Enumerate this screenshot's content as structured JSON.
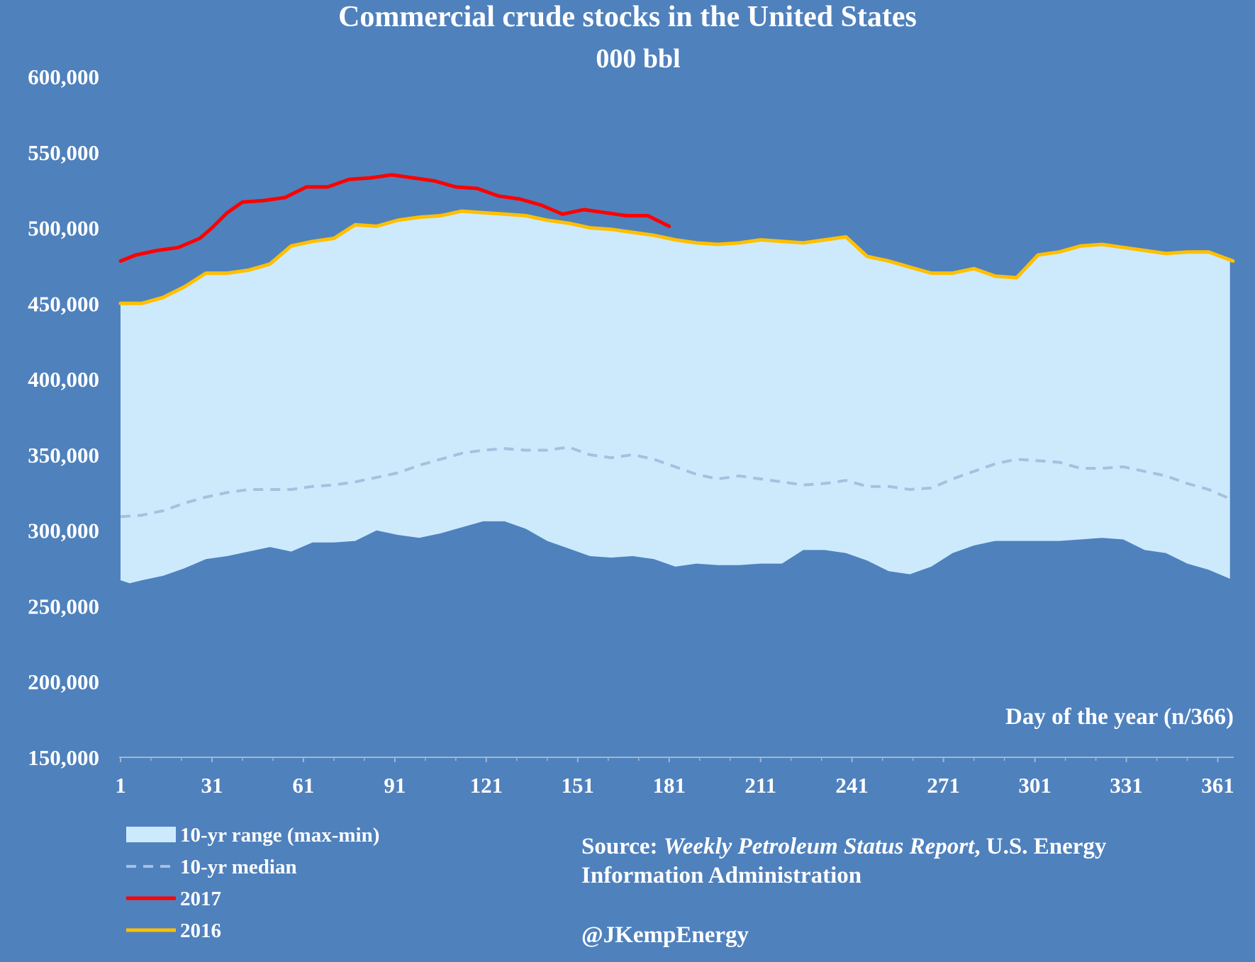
{
  "chart_data": {
    "type": "area",
    "title": "Commercial crude stocks in the United States",
    "subtitle": "000 bbl",
    "xlabel": "Day of the year (n/366)",
    "ylabel": "",
    "ylim": [
      150000,
      600000
    ],
    "xlim": [
      1,
      366
    ],
    "y_ticks": [
      "600,000",
      "550,000",
      "500,000",
      "450,000",
      "400,000",
      "350,000",
      "300,000",
      "250,000",
      "200,000",
      "150,000"
    ],
    "y_tick_values": [
      600000,
      550000,
      500000,
      450000,
      400000,
      350000,
      300000,
      250000,
      200000,
      150000
    ],
    "x_ticks": [
      "1",
      "31",
      "61",
      "91",
      "121",
      "151",
      "181",
      "211",
      "241",
      "271",
      "301",
      "331",
      "361"
    ],
    "x_tick_values": [
      1,
      31,
      61,
      91,
      121,
      151,
      181,
      211,
      241,
      271,
      301,
      331,
      361
    ],
    "grid": false,
    "legend_position": "bottom-left",
    "range_band": {
      "name": "10-yr range (max-min)",
      "color": "#cdeafd",
      "x": [
        1,
        4,
        8,
        15,
        22,
        29,
        36,
        43,
        50,
        57,
        64,
        71,
        78,
        85,
        92,
        99,
        106,
        113,
        120,
        127,
        134,
        141,
        148,
        155,
        162,
        169,
        176,
        183,
        190,
        197,
        204,
        211,
        218,
        225,
        232,
        239,
        246,
        253,
        260,
        267,
        274,
        281,
        288,
        295,
        302,
        309,
        316,
        323,
        330,
        337,
        344,
        351,
        358,
        365
      ],
      "max": [
        450000,
        450000,
        450000,
        454000,
        461000,
        470000,
        470000,
        472000,
        476000,
        488000,
        491000,
        493000,
        502000,
        501000,
        505000,
        507000,
        508000,
        511000,
        510000,
        509000,
        508000,
        505000,
        503000,
        500000,
        499000,
        497000,
        495000,
        492000,
        490000,
        489000,
        490000,
        492000,
        491000,
        490000,
        492000,
        494000,
        481000,
        478000,
        474000,
        470000,
        470000,
        473000,
        468000,
        467000,
        482000,
        484000,
        488000,
        489000,
        487000,
        485000,
        483000,
        484000,
        484000,
        478000
      ],
      "min": [
        267000,
        265000,
        267000,
        270000,
        275000,
        281000,
        283000,
        286000,
        289000,
        286000,
        292000,
        292000,
        293000,
        300000,
        297000,
        295000,
        298000,
        302000,
        306000,
        306000,
        301000,
        293000,
        288000,
        283000,
        282000,
        283000,
        281000,
        276000,
        278000,
        277000,
        277000,
        278000,
        278000,
        287000,
        287000,
        285000,
        280000,
        273000,
        271000,
        276000,
        285000,
        290000,
        293000,
        293000,
        293000,
        293000,
        294000,
        295000,
        294000,
        287000,
        285000,
        278000,
        274000,
        268000
      ]
    },
    "series": [
      {
        "name": "10-yr median",
        "color": "#a8bfdf",
        "dashed": true,
        "x": [
          1,
          8,
          15,
          22,
          29,
          36,
          43,
          50,
          57,
          64,
          71,
          78,
          85,
          92,
          99,
          106,
          113,
          120,
          127,
          134,
          141,
          148,
          155,
          162,
          169,
          176,
          183,
          190,
          197,
          204,
          211,
          218,
          225,
          232,
          239,
          246,
          253,
          260,
          267,
          274,
          281,
          288,
          295,
          302,
          309,
          316,
          323,
          330,
          337,
          344,
          351,
          358,
          366
        ],
        "values": [
          309000,
          310000,
          313000,
          318000,
          322000,
          325000,
          327000,
          327000,
          327000,
          329000,
          330000,
          332000,
          335000,
          338000,
          343000,
          347000,
          351000,
          353000,
          354000,
          353000,
          353000,
          355000,
          350000,
          348000,
          350000,
          347000,
          342000,
          337000,
          334000,
          336000,
          334000,
          332000,
          330000,
          331000,
          333000,
          329000,
          329000,
          327000,
          328000,
          334000,
          339000,
          344000,
          347000,
          346000,
          345000,
          341000,
          341000,
          342000,
          339000,
          336000,
          331000,
          327000,
          320000
        ]
      },
      {
        "name": "2017",
        "color": "#ff0000",
        "dashed": false,
        "x": [
          1,
          6,
          13,
          20,
          27,
          31,
          36,
          41,
          48,
          55,
          62,
          69,
          76,
          83,
          90,
          97,
          104,
          111,
          118,
          125,
          132,
          139,
          146,
          153,
          160,
          167,
          174,
          181
        ],
        "values": [
          478000,
          482000,
          485000,
          487000,
          493000,
          500000,
          510000,
          517000,
          518000,
          520000,
          527000,
          527000,
          532000,
          533000,
          535000,
          533000,
          531000,
          527000,
          526000,
          521000,
          519000,
          515000,
          509000,
          512000,
          510000,
          508000,
          508000,
          501000
        ]
      },
      {
        "name": "2016",
        "color": "#ffc000",
        "dashed": false,
        "x": [
          1,
          8,
          15,
          22,
          29,
          36,
          43,
          50,
          57,
          64,
          71,
          78,
          85,
          92,
          99,
          106,
          113,
          120,
          127,
          134,
          141,
          148,
          155,
          162,
          169,
          176,
          183,
          190,
          197,
          204,
          211,
          218,
          225,
          232,
          239,
          246,
          253,
          260,
          267,
          274,
          281,
          288,
          295,
          302,
          309,
          316,
          323,
          330,
          337,
          344,
          351,
          358,
          366
        ],
        "values": [
          450000,
          450000,
          454000,
          461000,
          470000,
          470000,
          472000,
          476000,
          488000,
          491000,
          493000,
          502000,
          501000,
          505000,
          507000,
          508000,
          511000,
          510000,
          509000,
          508000,
          505000,
          503000,
          500000,
          499000,
          497000,
          495000,
          492000,
          490000,
          489000,
          490000,
          492000,
          491000,
          490000,
          492000,
          494000,
          481000,
          478000,
          474000,
          470000,
          470000,
          473000,
          468000,
          467000,
          482000,
          484000,
          488000,
          489000,
          487000,
          485000,
          483000,
          484000,
          484000,
          478000
        ]
      }
    ],
    "legend": [
      {
        "label": "10-yr range (max-min)",
        "kind": "band",
        "color": "#cdeafd"
      },
      {
        "label": "10-yr median",
        "kind": "dashed",
        "color": "#a8bfdf"
      },
      {
        "label": "2017",
        "kind": "line",
        "color": "#ff0000"
      },
      {
        "label": "2016",
        "kind": "line",
        "color": "#ffc000"
      }
    ]
  },
  "source": {
    "prefix": "Source: ",
    "report": "Weekly Petroleum Status Report",
    "suffix": ", U.S. Energy",
    "line2": "Information Administration",
    "handle": "@JKempEnergy"
  }
}
